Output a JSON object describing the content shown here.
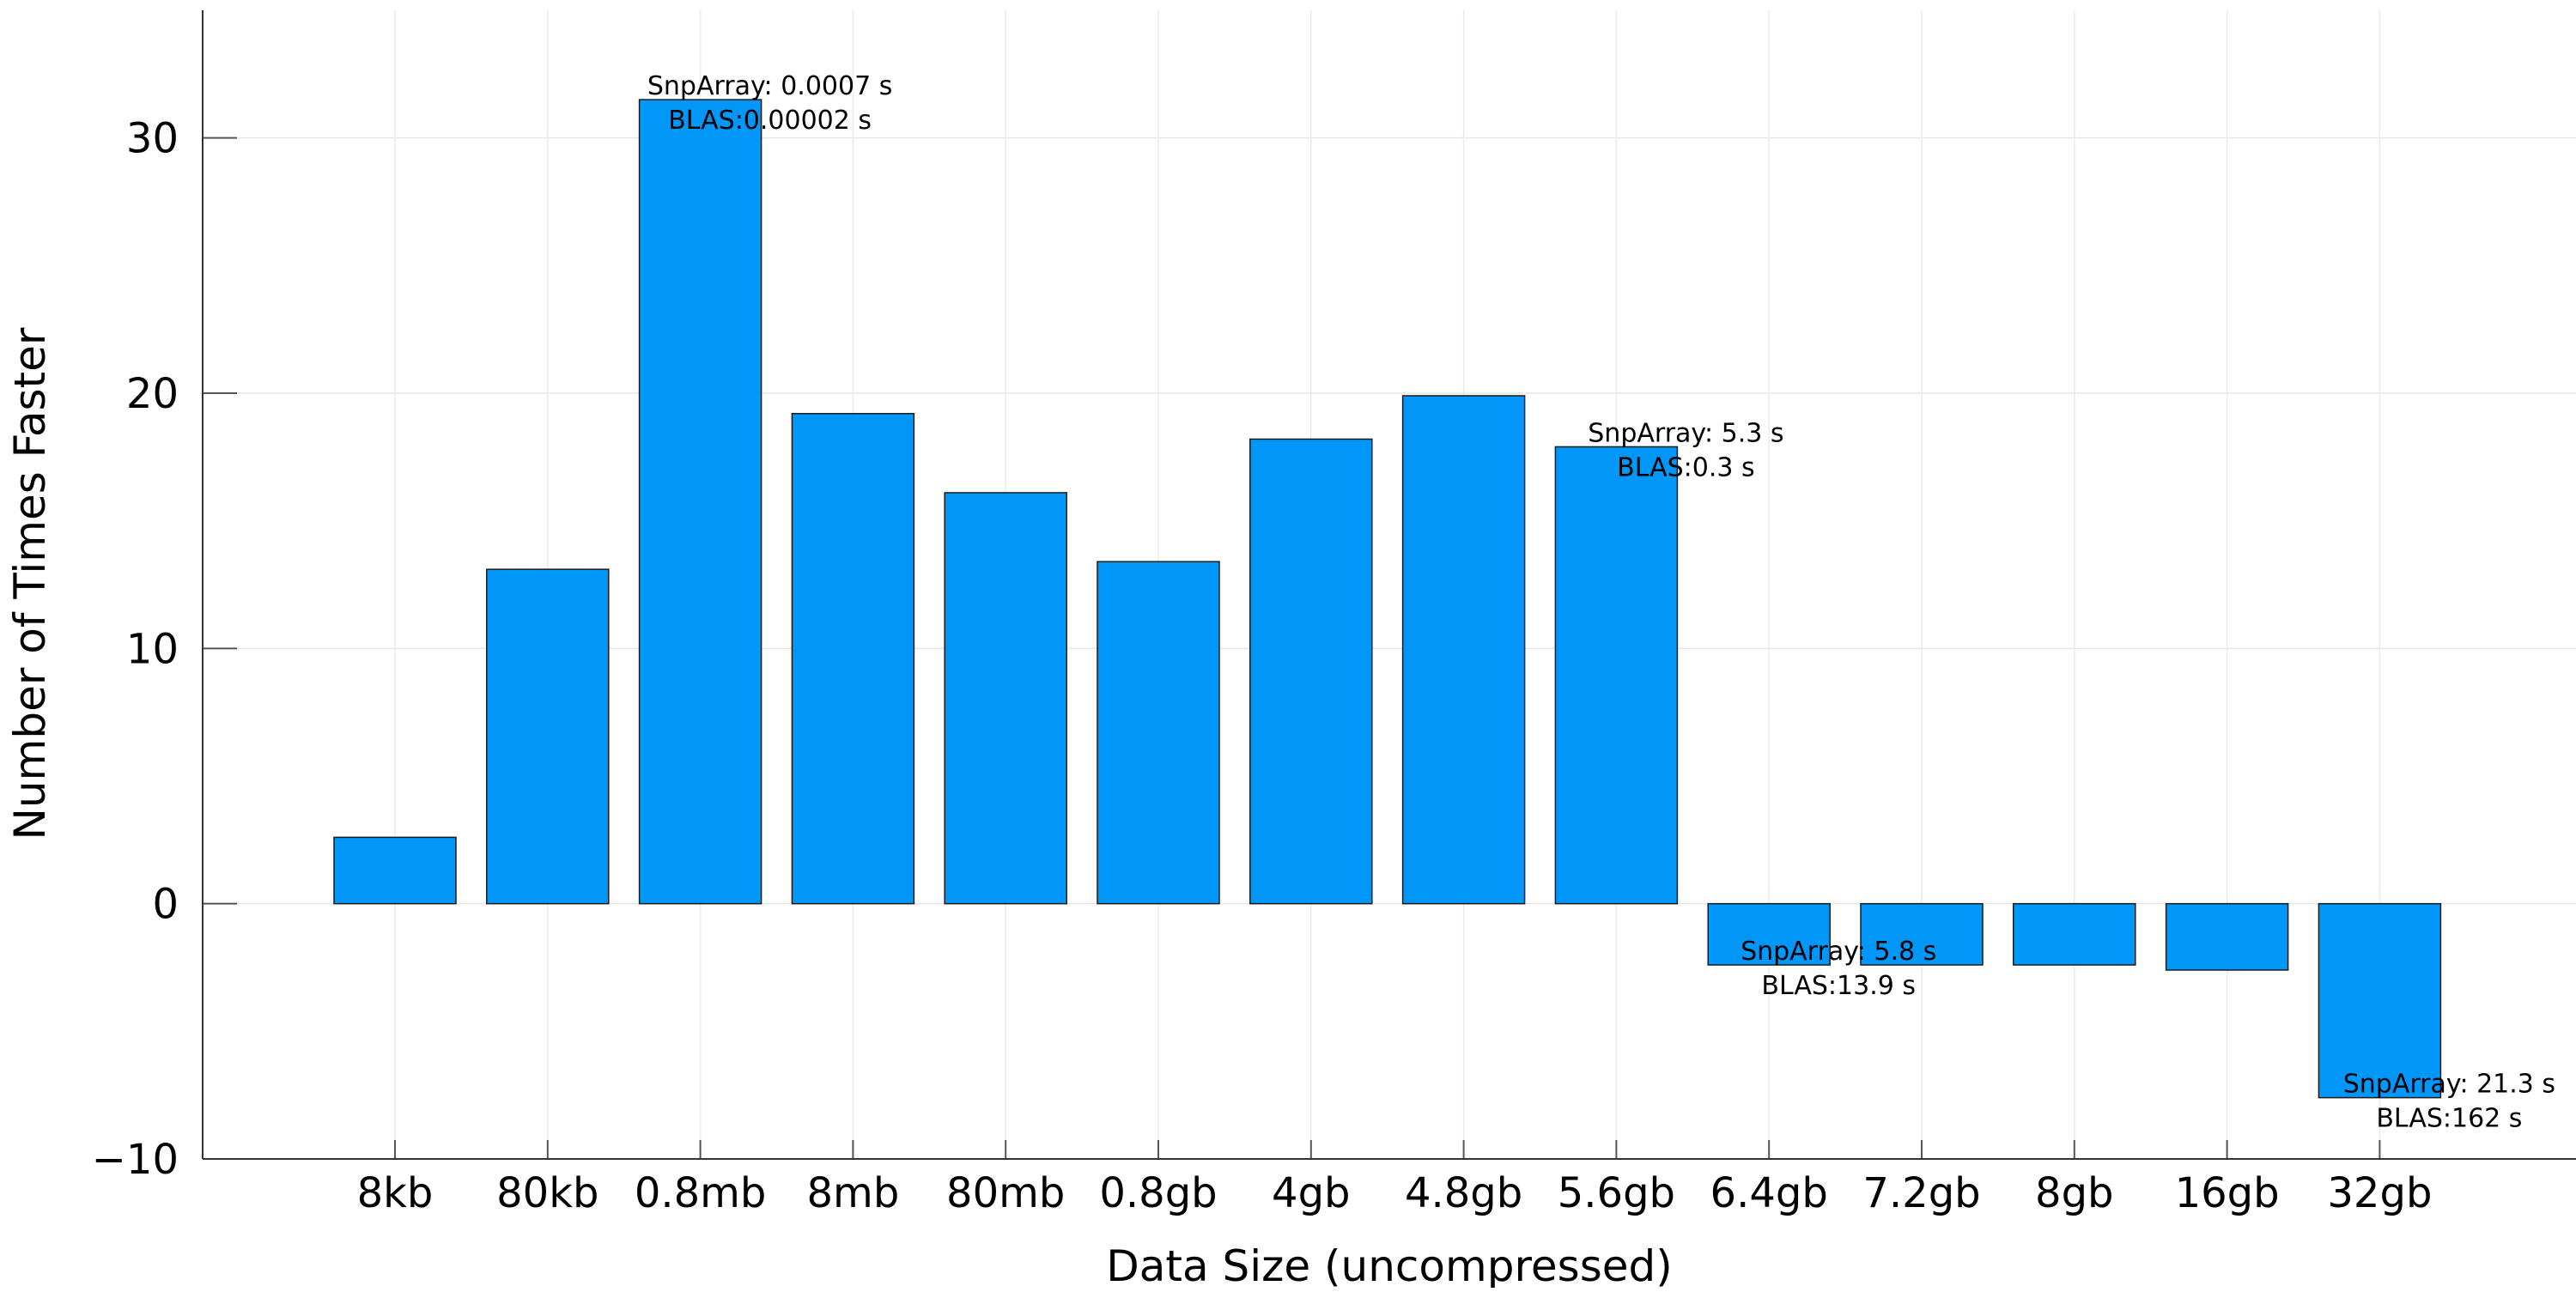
{
  "chart_data": {
    "type": "bar",
    "title": "",
    "xlabel": "Data Size (uncompressed)",
    "ylabel": "Number of Times Faster",
    "categories": [
      "8kb",
      "80kb",
      "0.8mb",
      "8mb",
      "80mb",
      "0.8gb",
      "4gb",
      "4.8gb",
      "5.6gb",
      "6.4gb",
      "7.2gb",
      "8gb",
      "16gb",
      "32gb"
    ],
    "values": [
      2.6,
      13.1,
      31.5,
      19.2,
      16.1,
      13.4,
      18.2,
      19.9,
      17.9,
      -2.4,
      -2.4,
      -2.4,
      -2.6,
      -7.6
    ],
    "ylim": [
      -10,
      35
    ],
    "yticks": [
      -10,
      0,
      10,
      20,
      30
    ],
    "grid": true,
    "legend": "none",
    "bar_color": "#0097F8",
    "annotations": [
      {
        "category": "0.8mb",
        "lines": [
          "SnpArray: 0.0007 s",
          "BLAS:0.00002 s"
        ]
      },
      {
        "category": "5.6gb",
        "lines": [
          "SnpArray: 5.3 s",
          "BLAS:0.3 s"
        ]
      },
      {
        "category": "6.4gb",
        "lines": [
          "SnpArray: 5.8 s",
          "BLAS:13.9 s"
        ]
      },
      {
        "category": "32gb",
        "lines": [
          "SnpArray: 21.3 s",
          "BLAS:162 s"
        ]
      }
    ]
  }
}
